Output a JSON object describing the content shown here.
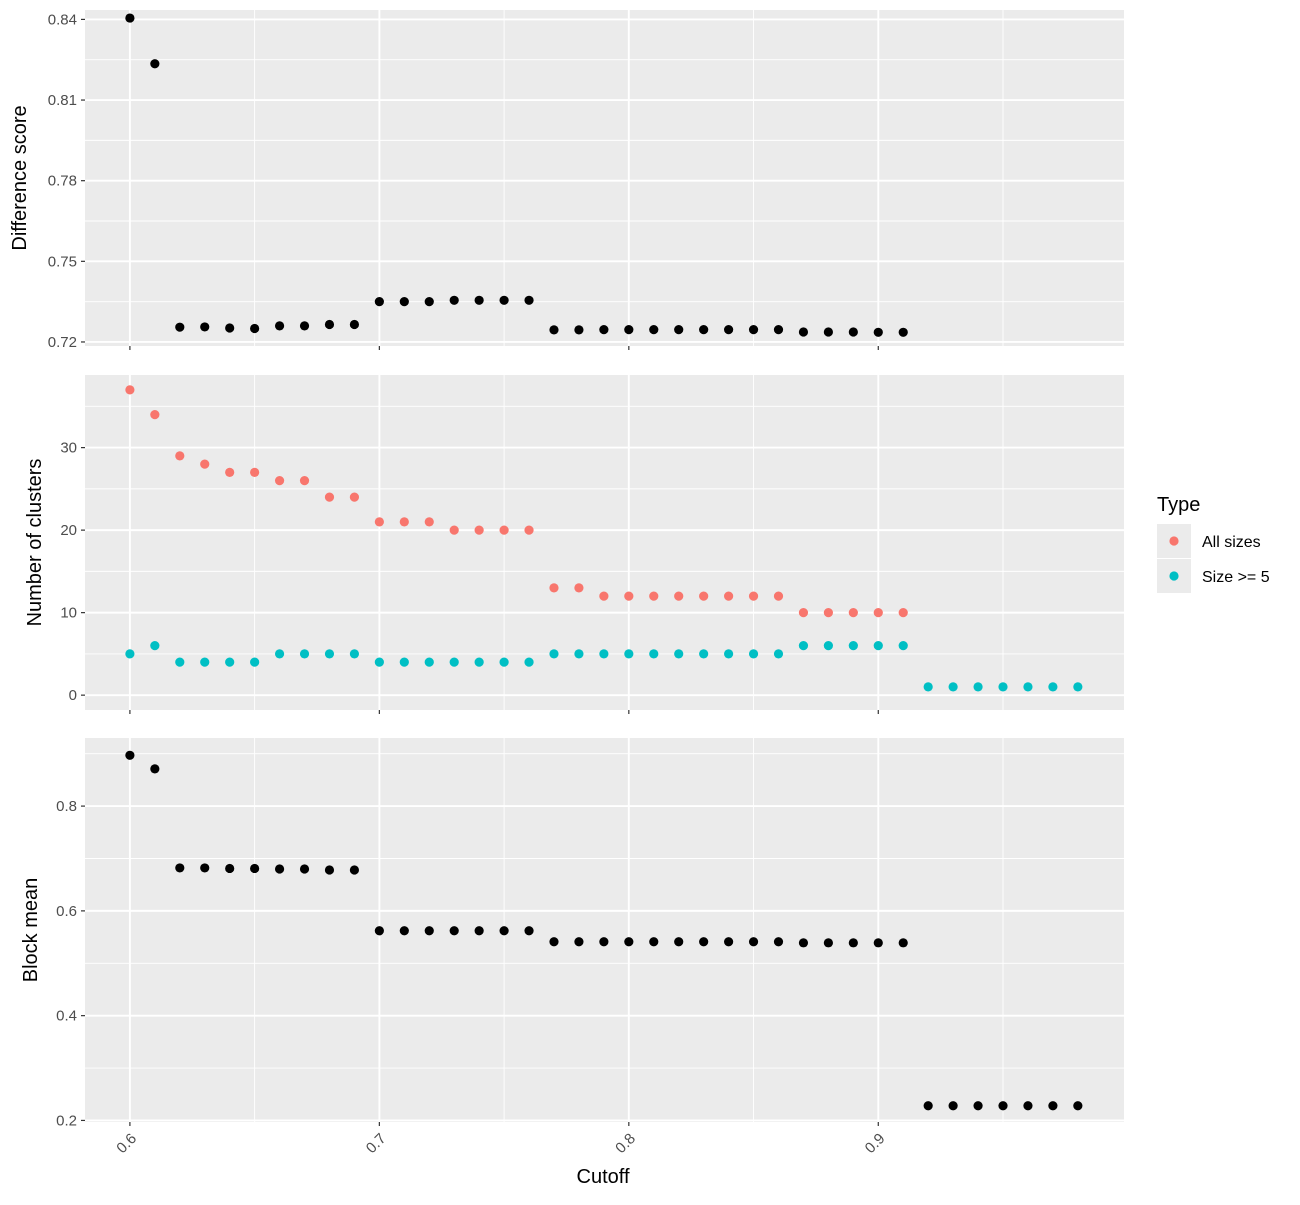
{
  "chart_data": [
    {
      "panel": "top",
      "type": "scatter",
      "ylabel": "Difference score",
      "ylim": [
        0.7185,
        0.8435
      ],
      "yticks": [
        0.72,
        0.75,
        0.78,
        0.81,
        0.84
      ],
      "ytick_labels": [
        "0.72",
        "0.75",
        "0.78",
        "0.81",
        "0.84"
      ],
      "series": [
        {
          "color": "#000000",
          "x": [
            0.6,
            0.61,
            0.62,
            0.63,
            0.64,
            0.65,
            0.66,
            0.67,
            0.68,
            0.69,
            0.7,
            0.71,
            0.72,
            0.73,
            0.74,
            0.75,
            0.76,
            0.77,
            0.78,
            0.79,
            0.8,
            0.81,
            0.82,
            0.83,
            0.84,
            0.85,
            0.86,
            0.87,
            0.88,
            0.89,
            0.9,
            0.91
          ],
          "y": [
            0.8405,
            0.8235,
            0.7255,
            0.7256,
            0.7252,
            0.725,
            0.726,
            0.726,
            0.7265,
            0.7265,
            0.735,
            0.735,
            0.735,
            0.7355,
            0.7355,
            0.7355,
            0.7355,
            0.7245,
            0.7245,
            0.7246,
            0.7246,
            0.7246,
            0.7246,
            0.7246,
            0.7246,
            0.7246,
            0.7246,
            0.7237,
            0.7237,
            0.7237,
            0.7236,
            0.7236
          ]
        }
      ]
    },
    {
      "panel": "middle",
      "type": "scatter",
      "ylabel": "Number of clusters",
      "ylim": [
        -1.8,
        38.8
      ],
      "yticks": [
        0,
        10,
        20,
        30
      ],
      "ytick_labels": [
        "0",
        "10",
        "20",
        "30"
      ],
      "legend": {
        "title": "Type",
        "position": "right",
        "entries": [
          {
            "label": "All sizes",
            "color": "#F8766D"
          },
          {
            "label": "Size >= 5",
            "color": "#00BFC4"
          }
        ]
      },
      "series": [
        {
          "name": "All sizes",
          "color": "#F8766D",
          "x": [
            0.6,
            0.61,
            0.62,
            0.63,
            0.64,
            0.65,
            0.66,
            0.67,
            0.68,
            0.69,
            0.7,
            0.71,
            0.72,
            0.73,
            0.74,
            0.75,
            0.76,
            0.77,
            0.78,
            0.79,
            0.8,
            0.81,
            0.82,
            0.83,
            0.84,
            0.85,
            0.86,
            0.87,
            0.88,
            0.89,
            0.9,
            0.91
          ],
          "y": [
            37,
            34,
            29,
            28,
            27,
            27,
            26,
            26,
            24,
            24,
            21,
            21,
            21,
            20,
            20,
            20,
            20,
            13,
            13,
            12,
            12,
            12,
            12,
            12,
            12,
            12,
            12,
            10,
            10,
            10,
            10,
            10
          ]
        },
        {
          "name": "Size >= 5",
          "color": "#00BFC4",
          "x": [
            0.6,
            0.61,
            0.62,
            0.63,
            0.64,
            0.65,
            0.66,
            0.67,
            0.68,
            0.69,
            0.7,
            0.71,
            0.72,
            0.73,
            0.74,
            0.75,
            0.76,
            0.77,
            0.78,
            0.79,
            0.8,
            0.81,
            0.82,
            0.83,
            0.84,
            0.85,
            0.86,
            0.87,
            0.88,
            0.89,
            0.9,
            0.91,
            0.92,
            0.93,
            0.94,
            0.95,
            0.96,
            0.97,
            0.98
          ],
          "y": [
            5,
            6,
            4,
            4,
            4,
            4,
            5,
            5,
            5,
            5,
            4,
            4,
            4,
            4,
            4,
            4,
            4,
            5,
            5,
            5,
            5,
            5,
            5,
            5,
            5,
            5,
            5,
            6,
            6,
            6,
            6,
            6,
            1,
            1,
            1,
            1,
            1,
            1,
            1
          ]
        }
      ]
    },
    {
      "panel": "bottom",
      "type": "scatter",
      "ylabel": "Block mean",
      "xlabel": "Cutoff",
      "ylim": [
        0.197,
        0.93
      ],
      "yticks": [
        0.2,
        0.4,
        0.6,
        0.8
      ],
      "ytick_labels": [
        "0.2",
        "0.4",
        "0.6",
        "0.8"
      ],
      "series": [
        {
          "color": "#000000",
          "x": [
            0.6,
            0.61,
            0.62,
            0.63,
            0.64,
            0.65,
            0.66,
            0.67,
            0.68,
            0.69,
            0.7,
            0.71,
            0.72,
            0.73,
            0.74,
            0.75,
            0.76,
            0.77,
            0.78,
            0.79,
            0.8,
            0.81,
            0.82,
            0.83,
            0.84,
            0.85,
            0.86,
            0.87,
            0.88,
            0.89,
            0.9,
            0.91,
            0.92,
            0.93,
            0.94,
            0.95,
            0.96,
            0.97,
            0.98
          ],
          "y": [
            0.897,
            0.871,
            0.682,
            0.682,
            0.681,
            0.681,
            0.68,
            0.68,
            0.678,
            0.678,
            0.562,
            0.562,
            0.562,
            0.562,
            0.562,
            0.562,
            0.562,
            0.541,
            0.541,
            0.541,
            0.541,
            0.541,
            0.541,
            0.541,
            0.541,
            0.541,
            0.541,
            0.539,
            0.539,
            0.539,
            0.539,
            0.539,
            0.228,
            0.228,
            0.228,
            0.228,
            0.228,
            0.228,
            0.228
          ]
        }
      ]
    }
  ],
  "shared_x": {
    "xlabel": "Cutoff",
    "xlim": [
      0.582,
      0.9985
    ],
    "xticks": [
      0.6,
      0.7,
      0.8,
      0.9
    ],
    "xtick_labels": [
      "0.6",
      "0.7",
      "0.8",
      "0.9"
    ]
  },
  "colors": {
    "panel_bg": "#EBEBEB",
    "grid": "#FFFFFF",
    "text": "#4D4D4D",
    "title_text": "#000000"
  }
}
